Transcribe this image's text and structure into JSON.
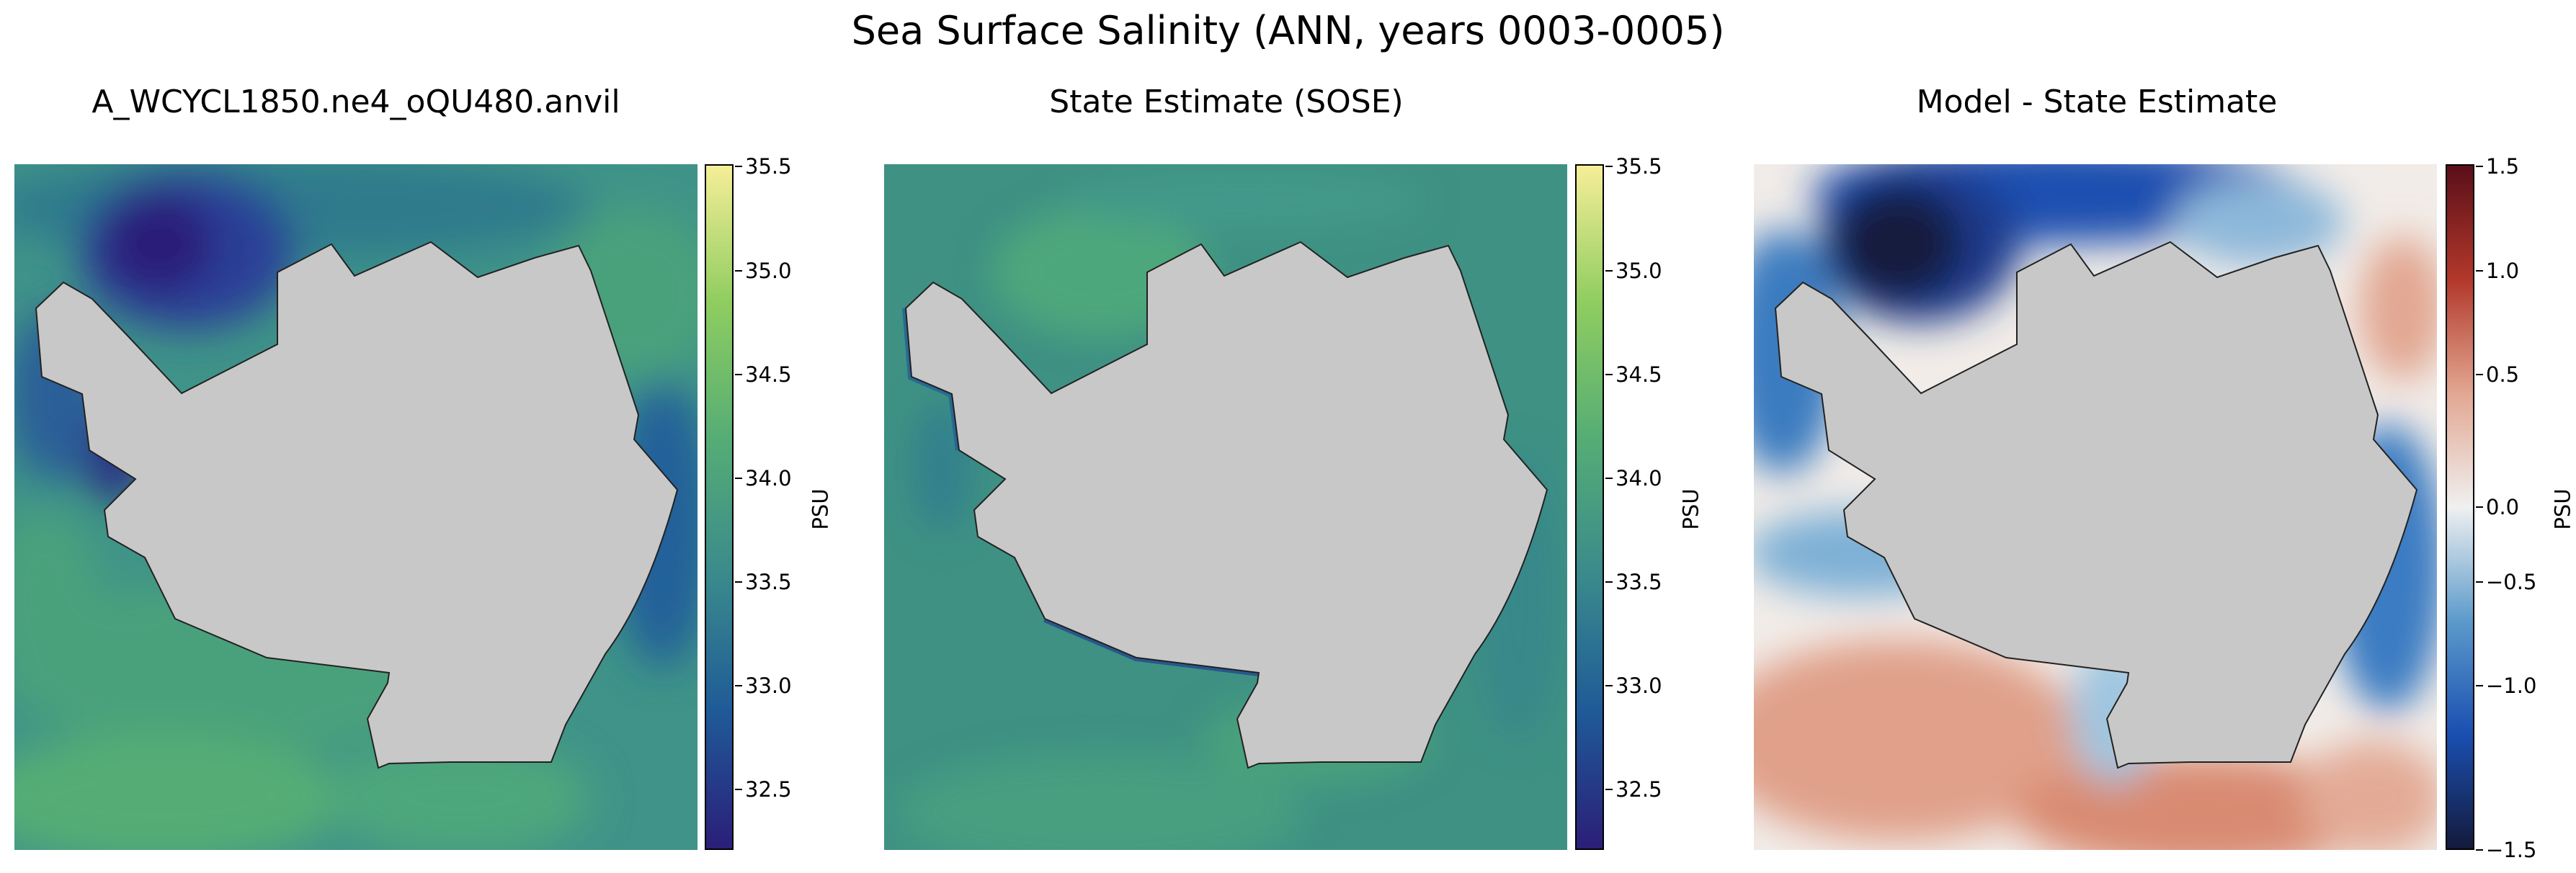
{
  "figure": {
    "title": "Sea Surface Salinity (ANN, years 0003-0005)"
  },
  "panels": [
    {
      "title": "A_WCYCL1850.ne4_oQU480.anvil",
      "colorbar": {
        "label": "PSU",
        "ticks": [
          "35.5",
          "35.0",
          "34.5",
          "34.0",
          "33.5",
          "33.0",
          "32.5"
        ],
        "range": [
          32.2,
          35.5
        ],
        "colors": [
          "#2b1e78",
          "#1f5a98",
          "#3a8a8c",
          "#55ad75",
          "#8fcd60",
          "#f6ee98"
        ]
      }
    },
    {
      "title": "State Estimate (SOSE)",
      "colorbar": {
        "label": "PSU",
        "ticks": [
          "35.5",
          "35.0",
          "34.5",
          "34.0",
          "33.5",
          "33.0",
          "32.5"
        ],
        "range": [
          32.2,
          35.5
        ],
        "colors": [
          "#2b1e78",
          "#1f5a98",
          "#3a8a8c",
          "#55ad75",
          "#8fcd60",
          "#f6ee98"
        ]
      }
    },
    {
      "title": "Model - State Estimate",
      "colorbar": {
        "label": "PSU",
        "ticks": [
          "1.5",
          "1.0",
          "0.5",
          "0.0",
          "−0.5",
          "−1.0",
          "−1.5"
        ],
        "range": [
          -1.5,
          1.5
        ],
        "colors": [
          "#141a3c",
          "#1a4fb0",
          "#5c9acb",
          "#f0f0f0",
          "#e2a792",
          "#b2382a",
          "#5a0f1a"
        ]
      }
    }
  ],
  "colors": {
    "land": "#c8c8c8",
    "coast": "#222222",
    "ocean_model_base": "#3f9388",
    "ocean_sose_base": "#3e9183",
    "ocean_diff_base": "#f1ece8"
  }
}
